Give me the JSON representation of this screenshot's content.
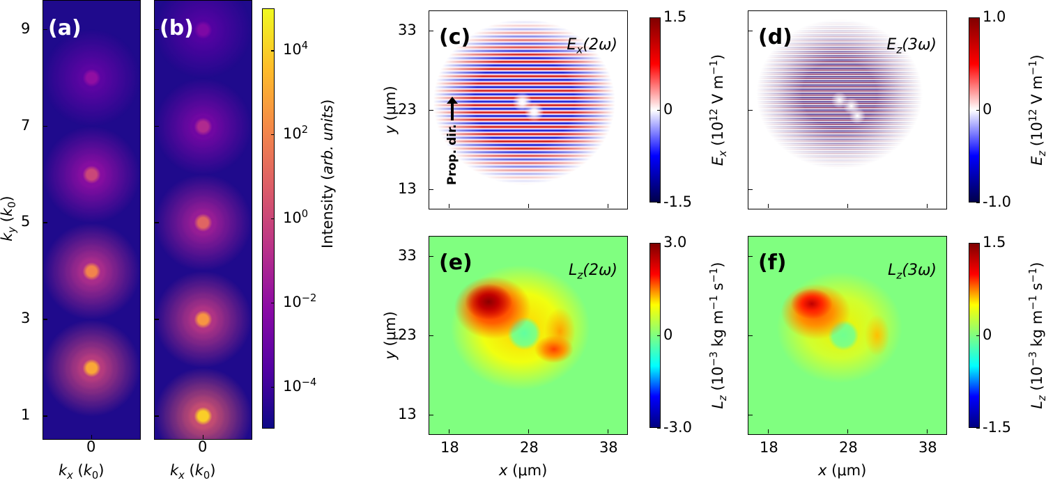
{
  "chart_data": [
    {
      "type": "heatmap",
      "panel": "(a)",
      "colormap": "plasma",
      "xlabel": "k_x (k_0)",
      "ylabel": "k_y (k_0)",
      "xticks": [
        0
      ],
      "yticks": [
        1,
        3,
        5,
        7,
        9
      ],
      "ylim": [
        0.5,
        9.6
      ],
      "peaks": [
        {
          "ky": 2,
          "log10_intensity": 3
        },
        {
          "ky": 4,
          "log10_intensity": 2
        },
        {
          "ky": 6,
          "log10_intensity": 0
        },
        {
          "ky": 8,
          "log10_intensity": -2
        }
      ]
    },
    {
      "type": "heatmap",
      "panel": "(b)",
      "colormap": "plasma",
      "xlabel": "k_x (k_0)",
      "xticks": [
        0
      ],
      "yticks": [
        1,
        3,
        5,
        7,
        9
      ],
      "ylim": [
        0.5,
        9.6
      ],
      "peaks": [
        {
          "ky": 1,
          "log10_intensity": 4
        },
        {
          "ky": 3,
          "log10_intensity": 2.5
        },
        {
          "ky": 5,
          "log10_intensity": 1
        },
        {
          "ky": 7,
          "log10_intensity": -1
        },
        {
          "ky": 9,
          "log10_intensity": -2.5
        }
      ]
    },
    {
      "type": "colorbar",
      "for": [
        "(a)",
        "(b)"
      ],
      "label": "Intensity",
      "label_units": "arb. units",
      "scale": "log",
      "range": [
        1e-05,
        100000.0
      ],
      "ticks": [
        "10^4",
        "10^2",
        "10^0",
        "10^-2",
        "10^-4"
      ]
    },
    {
      "type": "heatmap",
      "panel": "(c)",
      "title": "E_x(2ω)",
      "colormap": "seismic",
      "ylabel": "y (μm)",
      "yticks": [
        13,
        23,
        33
      ],
      "xticks": [
        18,
        28,
        38
      ],
      "annotation": "Prop. dir.",
      "colorbar": {
        "label": "E_x (10^12 V m^-1)",
        "range": [
          -1.5,
          1.5
        ],
        "ticks": [
          "1.5",
          "0",
          "-1.5"
        ]
      }
    },
    {
      "type": "heatmap",
      "panel": "(d)",
      "title": "E_z(3ω)",
      "colormap": "seismic",
      "yticks": [
        13,
        23,
        33
      ],
      "xticks": [
        18,
        28,
        38
      ],
      "colorbar": {
        "label": "E_z (10^12 V m^-1)",
        "range": [
          -1.0,
          1.0
        ],
        "ticks": [
          "1.0",
          "0",
          "-1.0"
        ]
      }
    },
    {
      "type": "heatmap",
      "panel": "(e)",
      "title": "L_z(2ω)",
      "colormap": "jet",
      "ylabel": "y (μm)",
      "xlabel": "x (μm)",
      "yticks": [
        13,
        23,
        33
      ],
      "xticks": [
        18,
        28,
        38
      ],
      "colorbar": {
        "label": "L_z (10^-3 kg m^-1 s^-1)",
        "range": [
          -3.0,
          3.0
        ],
        "ticks": [
          "3.0",
          "0",
          "-3.0"
        ]
      }
    },
    {
      "type": "heatmap",
      "panel": "(f)",
      "title": "L_z(3ω)",
      "colormap": "jet",
      "xlabel": "x (μm)",
      "yticks": [
        13,
        23,
        33
      ],
      "xticks": [
        18,
        28,
        38
      ],
      "colorbar": {
        "label": "L_z (10^-3 kg m^-1 s^-1)",
        "range": [
          -1.5,
          1.5
        ],
        "ticks": [
          "1.5",
          "0",
          "-1.5"
        ]
      }
    }
  ],
  "labels": {
    "a": "(a)",
    "b": "(b)",
    "c": "(c)",
    "d": "(d)",
    "e": "(e)",
    "f": "(f)",
    "c_title": "E",
    "c_sub": "x",
    "c_arg": "(2ω)",
    "d_title": "E",
    "d_sub": "z",
    "d_arg": "(3ω)",
    "e_title": "L",
    "e_sub": "z",
    "e_arg": "(2ω)",
    "f_title": "L",
    "f_sub": "z",
    "f_arg": "(3ω)",
    "prop": "Prop. dir.",
    "ky": "k",
    "ky_sub": "y",
    "k0": "k",
    "k0_sub": "0",
    "kx": "k",
    "kx_sub": "x",
    "intensity": "Intensity (",
    "arb": "arb. units",
    ")": ")",
    "y_um": "y",
    "um": " (μm)",
    "x_um": "x",
    "ex_cb": "E",
    "ex_cb_sub": "x",
    "field_unit": " (10",
    "field_exp": "12",
    "field_unit2": " V m",
    "field_exp2": "−1",
    "ez_cb": "E",
    "ez_cb_sub": "z",
    "lz_cb": "L",
    "lz_cb_sub": "z",
    "lz_unit": " (10",
    "lz_exp": "−3",
    "lz_unit2": " kg m",
    "lz_exp2": "−1",
    "lz_unit3": " s",
    "lz_exp3": "−1"
  },
  "colors": {
    "plasma_low": "#1f0a8c",
    "red": "#c00000",
    "blue": "#0000c0",
    "jet_mid": "#80ff80"
  }
}
